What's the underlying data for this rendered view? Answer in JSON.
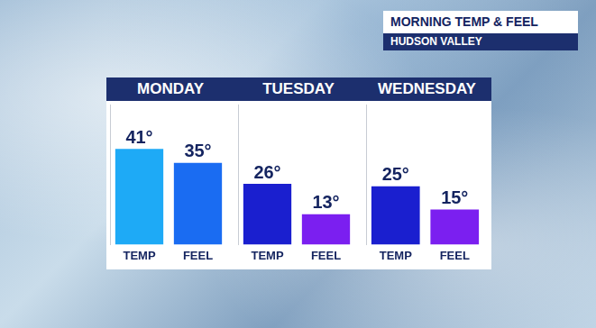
{
  "header": {
    "title": "MORNING TEMP & FEEL",
    "subtitle": "HUDSON VALLEY"
  },
  "chart_data": [
    {
      "type": "bar",
      "title": "MONDAY",
      "categories": [
        "TEMP",
        "FEEL"
      ],
      "values": [
        41,
        35
      ],
      "value_labels": [
        "41°",
        "35°"
      ],
      "colors": [
        "#1eaaf6",
        "#1a6cf2"
      ],
      "ylim": [
        0,
        60
      ],
      "grid": false,
      "data_labels": true,
      "tick_labels": "x"
    },
    {
      "type": "bar",
      "title": "TUESDAY",
      "categories": [
        "TEMP",
        "FEEL"
      ],
      "values": [
        26,
        13
      ],
      "value_labels": [
        "26°",
        "13°"
      ],
      "colors": [
        "#1a1fcf",
        "#7b1ff0"
      ],
      "ylim": [
        0,
        60
      ],
      "grid": false,
      "data_labels": true,
      "tick_labels": "x"
    },
    {
      "type": "bar",
      "title": "WEDNESDAY",
      "categories": [
        "TEMP",
        "FEEL"
      ],
      "values": [
        25,
        15
      ],
      "value_labels": [
        "25°",
        "15°"
      ],
      "colors": [
        "#1a1fcf",
        "#7b1ff0"
      ],
      "ylim": [
        0,
        60
      ],
      "grid": false,
      "data_labels": true,
      "tick_labels": "x"
    }
  ]
}
